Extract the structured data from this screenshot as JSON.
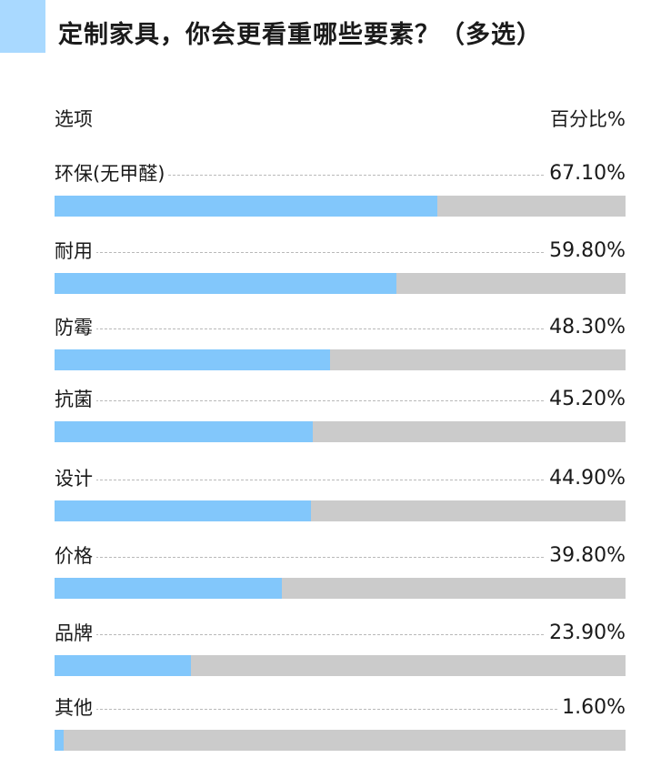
{
  "title": "定制家具，你会更看重哪些要素？（多选）",
  "header": {
    "left": "选项",
    "right": "百分比%"
  },
  "colors": {
    "accent": "#a9d9ff",
    "bar_fill": "#82c7fb",
    "bar_track": "#cbcbcb"
  },
  "chart_data": {
    "type": "bar",
    "orientation": "horizontal",
    "categories": [
      "环保(无甲醛)",
      "耐用",
      "防霉",
      "抗菌",
      "设计",
      "价格",
      "品牌",
      "其他"
    ],
    "values": [
      67.1,
      59.8,
      48.3,
      45.2,
      44.9,
      39.8,
      23.9,
      1.6
    ],
    "value_labels": [
      "67.10%",
      "59.80%",
      "48.30%",
      "45.20%",
      "44.90%",
      "39.80%",
      "23.90%",
      "1.60%"
    ],
    "xlim": [
      0,
      100
    ]
  }
}
